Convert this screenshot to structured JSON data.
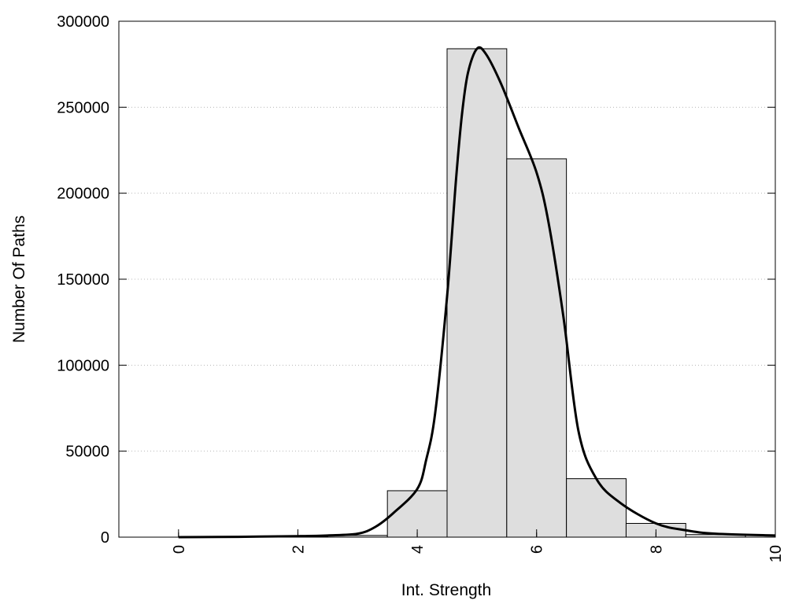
{
  "chart_data": {
    "type": "bar",
    "title": "",
    "xlabel": "Int. Strength",
    "ylabel": "Number Of Paths",
    "xlim": [
      -1,
      10
    ],
    "ylim": [
      0,
      300000
    ],
    "x_ticks": [
      0,
      2,
      4,
      6,
      8,
      10
    ],
    "y_ticks": [
      0,
      50000,
      100000,
      150000,
      200000,
      250000,
      300000
    ],
    "grid": "horizontal-dotted",
    "bar_width": 1,
    "bar_color": "#dedede",
    "bar_edge_color": "#000000",
    "line_color": "#000000",
    "bars": [
      {
        "x": 0,
        "value": 0
      },
      {
        "x": 1,
        "value": 0
      },
      {
        "x": 2,
        "value": 300
      },
      {
        "x": 3,
        "value": 1000
      },
      {
        "x": 4,
        "value": 27000
      },
      {
        "x": 5,
        "value": 284000
      },
      {
        "x": 6,
        "value": 220000
      },
      {
        "x": 7,
        "value": 34000
      },
      {
        "x": 8,
        "value": 8000
      },
      {
        "x": 9,
        "value": 1500
      }
    ],
    "curve": [
      {
        "x": 0,
        "y": 0
      },
      {
        "x": 1,
        "y": 200
      },
      {
        "x": 2,
        "y": 600
      },
      {
        "x": 2.5,
        "y": 1000
      },
      {
        "x": 3,
        "y": 2000
      },
      {
        "x": 3.3,
        "y": 6000
      },
      {
        "x": 3.6,
        "y": 14000
      },
      {
        "x": 4,
        "y": 28000
      },
      {
        "x": 4.15,
        "y": 45000
      },
      {
        "x": 4.3,
        "y": 72000
      },
      {
        "x": 4.5,
        "y": 140000
      },
      {
        "x": 4.65,
        "y": 208000
      },
      {
        "x": 4.75,
        "y": 246000
      },
      {
        "x": 4.85,
        "y": 270000
      },
      {
        "x": 5,
        "y": 284000
      },
      {
        "x": 5.15,
        "y": 281000
      },
      {
        "x": 5.4,
        "y": 264000
      },
      {
        "x": 5.7,
        "y": 238000
      },
      {
        "x": 6,
        "y": 212000
      },
      {
        "x": 6.2,
        "y": 183000
      },
      {
        "x": 6.45,
        "y": 128000
      },
      {
        "x": 6.7,
        "y": 62000
      },
      {
        "x": 7,
        "y": 34000
      },
      {
        "x": 7.4,
        "y": 20000
      },
      {
        "x": 8,
        "y": 8000
      },
      {
        "x": 8.5,
        "y": 4000
      },
      {
        "x": 9,
        "y": 2000
      },
      {
        "x": 10,
        "y": 1000
      }
    ]
  }
}
